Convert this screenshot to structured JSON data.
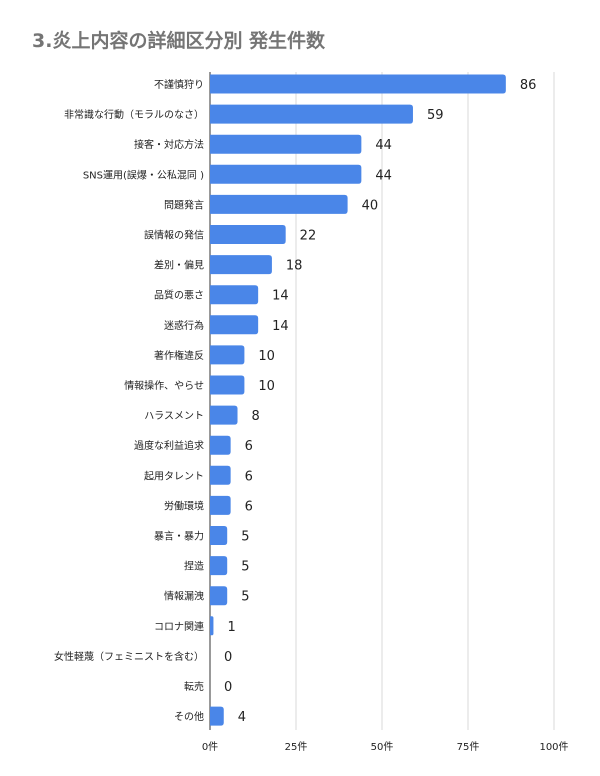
{
  "chart_data": {
    "type": "bar",
    "orientation": "horizontal",
    "title": "3.炎上内容の詳細区分別 発生件数",
    "categories": [
      "不謹慎狩り",
      "非常識な行動（モラルのなさ）",
      "接客・対応方法",
      "SNS運用(誤爆・公私混同 )",
      "問題発言",
      "誤情報の発信",
      "差別・偏見",
      "品質の悪さ",
      "迷惑行為",
      "著作権違反",
      "情報操作、やらせ",
      "ハラスメント",
      "過度な利益追求",
      "起用タレント",
      "労働環境",
      "暴言・暴力",
      "捏造",
      "情報漏洩",
      "コロナ関連",
      "女性軽蔑（フェミニストを含む）",
      "転売",
      "その他"
    ],
    "values": [
      86,
      59,
      44,
      44,
      40,
      22,
      18,
      14,
      14,
      10,
      10,
      8,
      6,
      6,
      6,
      5,
      5,
      5,
      1,
      0,
      0,
      4
    ],
    "value_labels": [
      "86",
      "59",
      "44",
      "44",
      "40",
      "22",
      "18",
      "14",
      "14",
      "10",
      "10",
      "8",
      "6",
      "6",
      "6",
      "5",
      "5",
      "5",
      "1",
      "0",
      "0",
      "4"
    ],
    "xlim": [
      0,
      100
    ],
    "xticks": [
      0,
      25,
      50,
      75,
      100
    ],
    "xtick_labels": [
      "0件",
      "25件",
      "50件",
      "75件",
      "100件"
    ],
    "grid": true,
    "bar_color": "#4a86e8",
    "grid_color": "#d9d9d9",
    "axis_color": "#333333"
  }
}
